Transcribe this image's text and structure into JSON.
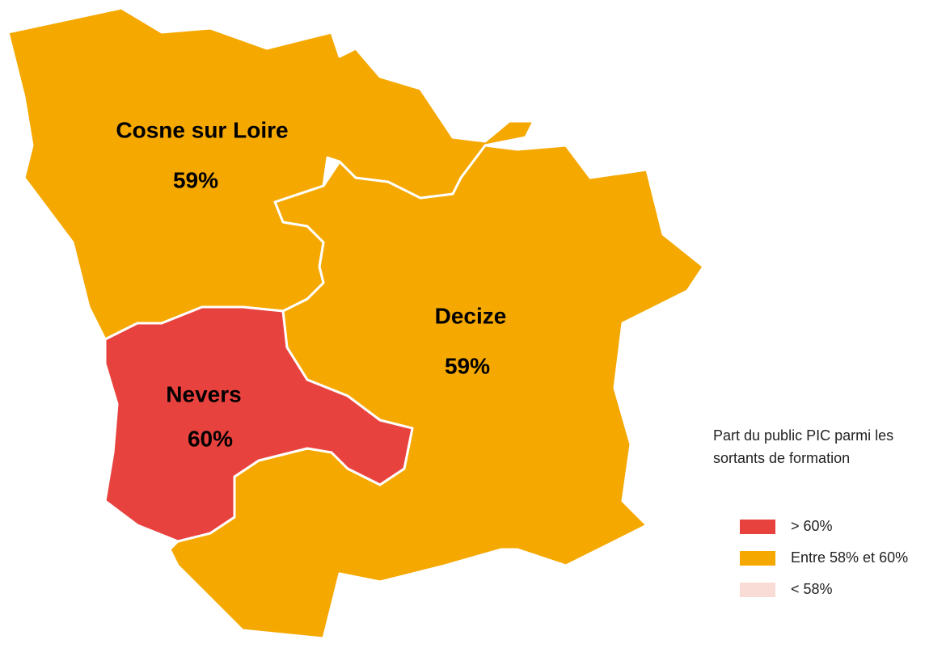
{
  "map": {
    "regions": [
      {
        "name": "Cosne sur Loire",
        "value_label": "59%",
        "color": "#f5a800"
      },
      {
        "name": "Decize",
        "value_label": "59%",
        "color": "#f5a800"
      },
      {
        "name": "Nevers",
        "value_label": "60%",
        "color": "#e8423f"
      }
    ],
    "legend": {
      "title_lines": [
        "Part du public PIC parmi les",
        "sortants de formation"
      ],
      "items": [
        {
          "label": "> 60%",
          "color": "#e8423f"
        },
        {
          "label": "Entre 58% et 60%",
          "color": "#f5a800"
        },
        {
          "label": "< 58%",
          "color": "#fadcd6"
        }
      ]
    }
  }
}
